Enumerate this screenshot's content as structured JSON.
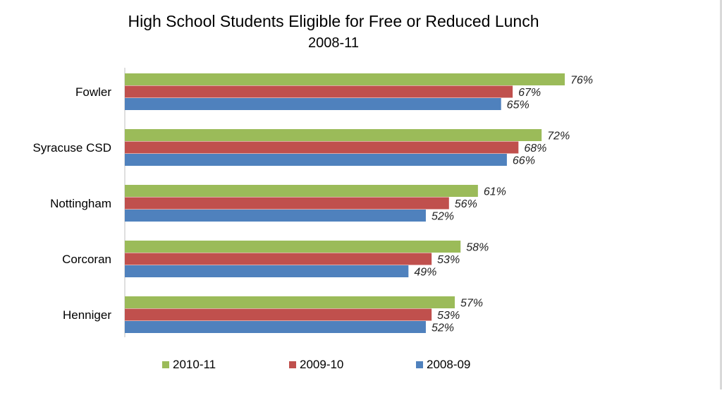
{
  "chart_data": {
    "type": "bar",
    "orientation": "horizontal",
    "title": "High School Students Eligible for Free or Reduced Lunch",
    "subtitle": "2008-11",
    "categories": [
      "Fowler",
      "Syracuse CSD",
      "Nottingham",
      "Corcoran",
      "Henniger"
    ],
    "series": [
      {
        "name": "2010-11",
        "color": "#9BBB59",
        "values": [
          76,
          72,
          61,
          58,
          57
        ],
        "labels": [
          "76%",
          "72%",
          "61%",
          "58%",
          "57%"
        ]
      },
      {
        "name": "2009-10",
        "color": "#C0504D",
        "values": [
          67,
          68,
          56,
          53,
          53
        ],
        "labels": [
          "67%",
          "68%",
          "56%",
          "53%",
          "53%"
        ]
      },
      {
        "name": "2008-09",
        "color": "#4F81BD",
        "values": [
          65,
          66,
          52,
          49,
          52
        ],
        "labels": [
          "65%",
          "66%",
          "52%",
          "49%",
          "52%"
        ]
      }
    ],
    "value_unit": "%",
    "xlim": [
      0,
      100
    ],
    "grid": false,
    "legend": {
      "position": "bottom",
      "order": [
        "2010-11",
        "2009-10",
        "2008-09"
      ]
    }
  }
}
